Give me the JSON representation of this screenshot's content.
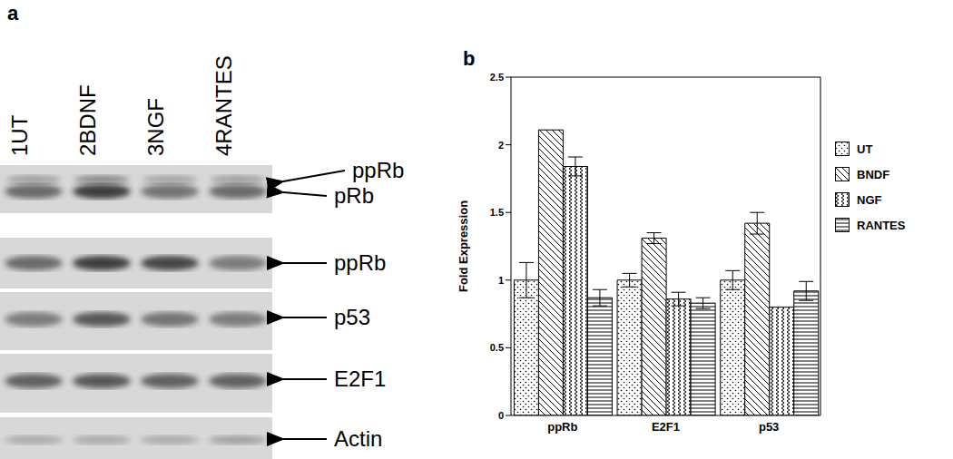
{
  "blot": {
    "panel": "a",
    "lanes": [
      {
        "number": "1",
        "label": "UT"
      },
      {
        "number": "2",
        "label": "BDNF"
      },
      {
        "number": "3",
        "label": "NGF"
      },
      {
        "number": "4",
        "label": "RANTES"
      }
    ],
    "rows": [
      {
        "labels": [
          "ppRb",
          "pRb"
        ]
      },
      {
        "labels": [
          "ppRb"
        ]
      },
      {
        "labels": [
          "p53"
        ]
      },
      {
        "labels": [
          "E2F1"
        ]
      },
      {
        "labels": [
          "Actin"
        ]
      }
    ]
  },
  "chart_data": {
    "type": "bar",
    "title": "b",
    "y_label": "Fold Expression",
    "categories": [
      "ppRb",
      "E2F1",
      "p53"
    ],
    "series": [
      {
        "name": "UT",
        "color": "#000000",
        "values": [
          1.0,
          1.0,
          1.0
        ],
        "errors": [
          0.13,
          0.05,
          0.07
        ]
      },
      {
        "name": "BNDF",
        "color": "#000000",
        "values": [
          2.11,
          1.31,
          1.42
        ],
        "errors": [
          null,
          0.04,
          0.08
        ]
      },
      {
        "name": "NGF",
        "color": "#000000",
        "values": [
          1.84,
          0.86,
          0.8
        ],
        "errors": [
          0.07,
          0.05,
          null
        ]
      },
      {
        "name": "RANTES",
        "color": "#000000",
        "values": [
          0.87,
          0.83,
          0.92
        ],
        "errors": [
          0.06,
          0.04,
          0.07
        ]
      }
    ],
    "ylim": [
      0,
      2.5
    ],
    "yticks": [
      0,
      0.5,
      1,
      1.5,
      2,
      2.5
    ],
    "legend": "right"
  }
}
